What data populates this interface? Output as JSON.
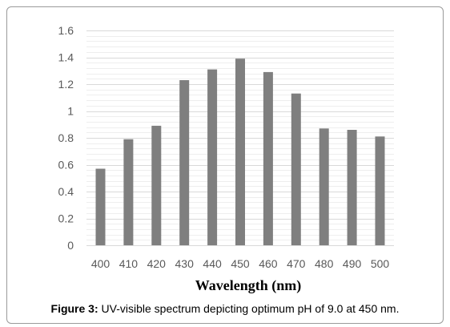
{
  "chart_data": {
    "type": "bar",
    "categories": [
      "400",
      "410",
      "420",
      "430",
      "440",
      "450",
      "460",
      "470",
      "480",
      "490",
      "500"
    ],
    "values": [
      0.57,
      0.79,
      0.89,
      1.23,
      1.31,
      1.39,
      1.29,
      1.13,
      0.87,
      0.86,
      0.81
    ],
    "xlabel": "Wavelength (nm)",
    "ylabel": "",
    "ylim": [
      0,
      1.6
    ],
    "yticks": [
      "0",
      "0.2",
      "0.4",
      "0.6",
      "0.8",
      "1",
      "1.2",
      "1.4",
      "1.6"
    ],
    "grid": true,
    "bar_color": "#7f7f7f",
    "grid_color": "#d9d9d9"
  },
  "caption": {
    "label": "Figure 3:",
    "text": " UV-visible spectrum depicting optimum pH of 9.0 at 450 nm."
  }
}
